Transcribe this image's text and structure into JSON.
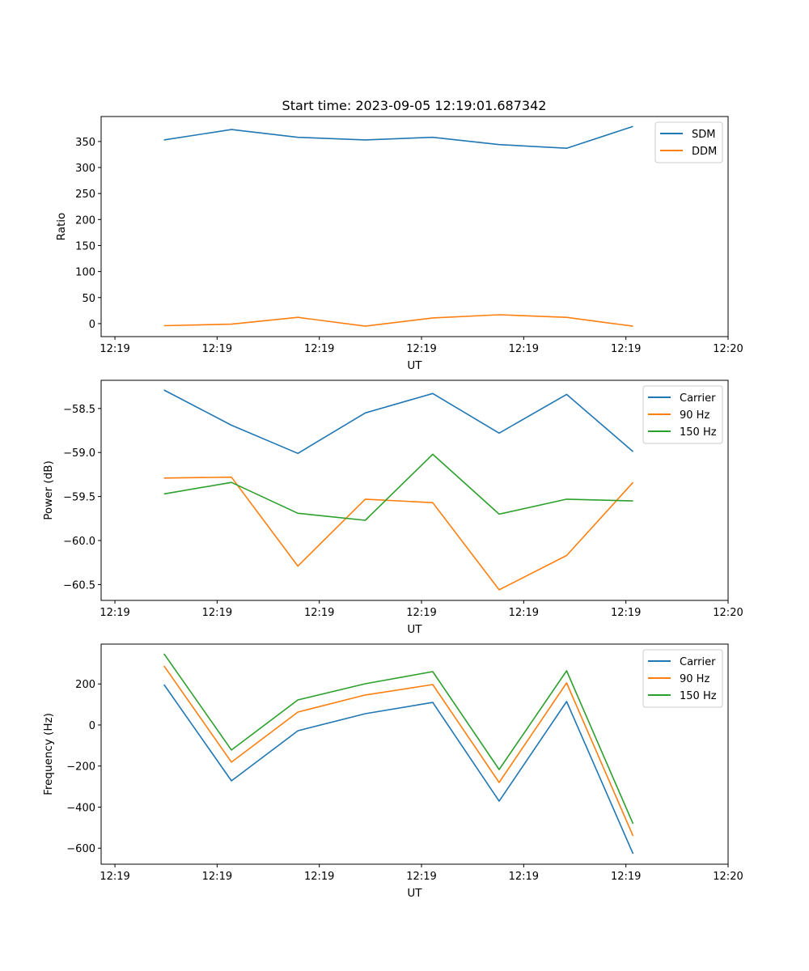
{
  "chart_data": [
    {
      "type": "line",
      "title": "Start time: 2023-09-05 12:19:01.687342",
      "xlabel": "UT",
      "ylabel": "Ratio",
      "x": [
        4.8,
        11.4,
        17.9,
        24.5,
        31.1,
        37.6,
        44.2,
        50.7
      ],
      "xlim": [
        -1.35,
        60.0
      ],
      "xticks": [
        0,
        10,
        20,
        30,
        40,
        50,
        60
      ],
      "xtick_labels": [
        "12:19",
        "12:19",
        "12:19",
        "12:19",
        "12:19",
        "12:19",
        "12:20"
      ],
      "ylim": [
        -25,
        398
      ],
      "yticks": [
        0,
        50,
        100,
        150,
        200,
        250,
        300,
        350
      ],
      "ytick_labels": [
        "0",
        "50",
        "100",
        "150",
        "200",
        "250",
        "300",
        "350"
      ],
      "legend": "top-right",
      "series": [
        {
          "name": "SDM",
          "color": "#1f77b4",
          "values": [
            353,
            373,
            358,
            353,
            358,
            344,
            337,
            379
          ]
        },
        {
          "name": "DDM",
          "color": "#ff7f0e",
          "values": [
            -4,
            -1,
            12,
            -5,
            11,
            17,
            12,
            -5
          ]
        }
      ]
    },
    {
      "type": "line",
      "xlabel": "UT",
      "ylabel": "Power (dB)",
      "x": [
        4.8,
        11.4,
        17.9,
        24.5,
        31.1,
        37.6,
        44.2,
        50.7
      ],
      "xlim": [
        -1.35,
        60.0
      ],
      "xticks": [
        0,
        10,
        20,
        30,
        40,
        50,
        60
      ],
      "xtick_labels": [
        "12:19",
        "12:19",
        "12:19",
        "12:19",
        "12:19",
        "12:19",
        "12:20"
      ],
      "ylim": [
        -60.68,
        -58.18
      ],
      "yticks": [
        -60.5,
        -60.0,
        -59.5,
        -59.0,
        -58.5
      ],
      "ytick_labels": [
        "−60.5",
        "−60.0",
        "−59.5",
        "−59.0",
        "−58.5"
      ],
      "legend": "top-right",
      "series": [
        {
          "name": "Carrier",
          "color": "#1f77b4",
          "values": [
            -58.29,
            -58.69,
            -59.01,
            -58.55,
            -58.33,
            -58.78,
            -58.34,
            -58.99
          ]
        },
        {
          "name": "90 Hz",
          "color": "#ff7f0e",
          "values": [
            -59.29,
            -59.28,
            -60.29,
            -59.53,
            -59.57,
            -60.56,
            -60.17,
            -59.34
          ]
        },
        {
          "name": "150 Hz",
          "color": "#2ca02c",
          "values": [
            -59.47,
            -59.34,
            -59.69,
            -59.77,
            -59.02,
            -59.7,
            -59.53,
            -59.55
          ]
        }
      ]
    },
    {
      "type": "line",
      "xlabel": "UT",
      "ylabel": "Frequency (Hz)",
      "x": [
        4.8,
        11.4,
        17.9,
        24.5,
        31.1,
        37.6,
        44.2,
        50.7
      ],
      "xlim": [
        -1.35,
        60.0
      ],
      "xticks": [
        0,
        10,
        20,
        30,
        40,
        50,
        60
      ],
      "xtick_labels": [
        "12:19",
        "12:19",
        "12:19",
        "12:19",
        "12:19",
        "12:19",
        "12:20"
      ],
      "ylim": [
        -678,
        394
      ],
      "yticks": [
        -600,
        -400,
        -200,
        0,
        200
      ],
      "ytick_labels": [
        "−600",
        "−400",
        "−200",
        "0",
        "200"
      ],
      "legend": "top-right",
      "series": [
        {
          "name": "Carrier",
          "color": "#1f77b4",
          "values": [
            197,
            -272,
            -28,
            55,
            110,
            -371,
            114,
            -627
          ]
        },
        {
          "name": "90 Hz",
          "color": "#ff7f0e",
          "values": [
            288,
            -181,
            63,
            146,
            197,
            -280,
            205,
            -540
          ]
        },
        {
          "name": "150 Hz",
          "color": "#2ca02c",
          "values": [
            347,
            -122,
            122,
            201,
            260,
            -217,
            264,
            -481
          ]
        }
      ]
    }
  ]
}
